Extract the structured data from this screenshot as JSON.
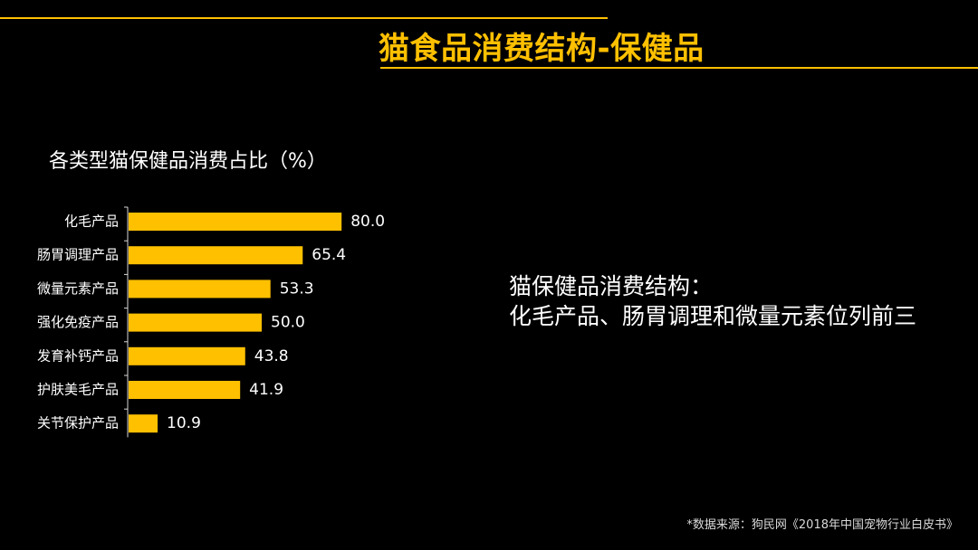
{
  "slide": {
    "title": "猫食品消费结构-保健品",
    "insight_line1": "猫保健品消费结构：",
    "insight_line2": "化毛产品、肠胃调理和微量元素位列前三",
    "source": "*数据来源：狗民网《2018年中国宠物行业白皮书》"
  },
  "colors": {
    "accent": "#FFC000",
    "background": "#000000",
    "text": "#FFFFFF"
  },
  "chart_data": {
    "type": "bar",
    "orientation": "horizontal",
    "title": "各类型猫保健品消费占比（%）",
    "categories": [
      "化毛产品",
      "肠胃调理产品",
      "微量元素产品",
      "强化免疫产品",
      "发育补钙产品",
      "护肤美毛产品",
      "关节保护产品"
    ],
    "values": [
      80.0,
      65.4,
      53.3,
      50.0,
      43.8,
      41.9,
      10.9
    ],
    "value_labels": [
      "80.0",
      "65.4",
      "53.3",
      "50.0",
      "43.8",
      "41.9",
      "10.9"
    ],
    "xlim": [
      0,
      100
    ],
    "grid": false,
    "legend": "none"
  }
}
